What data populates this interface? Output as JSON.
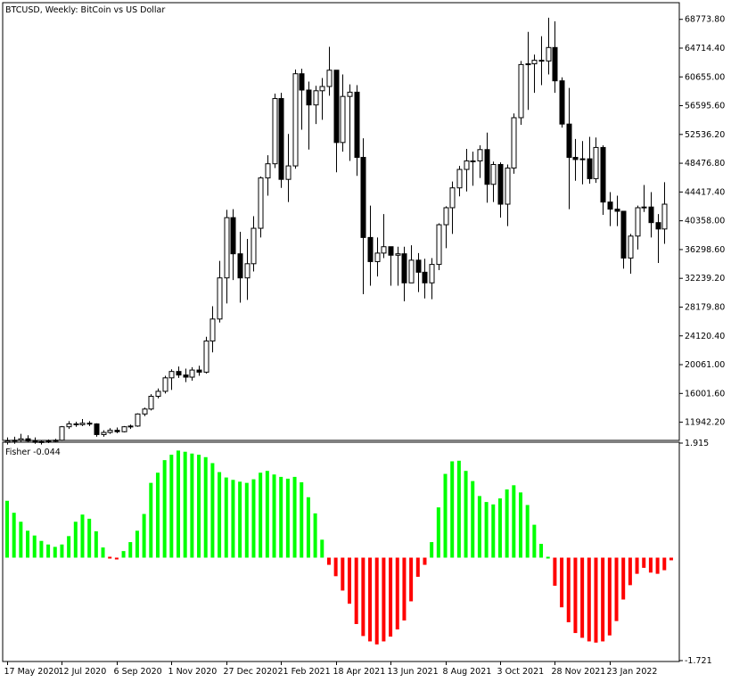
{
  "window": {
    "main_title": "BTCUSD, Weekly:  BitCoin vs US Dollar",
    "indicator_title": "Fisher -0.044"
  },
  "colors": {
    "background": "#ffffff",
    "frame": "#000000",
    "bull_candle": "#ffffff",
    "bear_candle": "#000000",
    "fisher_positive": "#00ff00",
    "fisher_negative": "#ff0000"
  },
  "chart_data": [
    {
      "type": "candlestick",
      "title": "BTCUSD, Weekly:  BitCoin vs US Dollar",
      "ylim": [
        9500,
        71000
      ],
      "y_ticks": [
        11942.2,
        16001.6,
        20061.0,
        24120.4,
        28179.8,
        32239.2,
        36298.6,
        40358.0,
        44417.4,
        48476.8,
        52536.2,
        56595.6,
        60655.0,
        64714.4,
        68773.8
      ],
      "x_tick_labels": [
        "17 May 2020",
        "12 Jul 2020",
        "6 Sep 2020",
        "1 Nov 2020",
        "27 Dec 2020",
        "21 Feb 2021",
        "18 Apr 2021",
        "13 Jun 2021",
        "8 Aug 2021",
        "3 Oct 2021",
        "28 Nov 2021",
        "23 Jan 2022"
      ],
      "x_tick_index": [
        0,
        8,
        16,
        24,
        32,
        40,
        48,
        56,
        64,
        72,
        80,
        88
      ],
      "candles": [
        {
          "o": 9100,
          "h": 9800,
          "l": 8800,
          "c": 9300
        },
        {
          "o": 9300,
          "h": 9900,
          "l": 8900,
          "c": 9400
        },
        {
          "o": 9400,
          "h": 10300,
          "l": 9200,
          "c": 9600
        },
        {
          "o": 9600,
          "h": 10100,
          "l": 9100,
          "c": 9300
        },
        {
          "o": 9300,
          "h": 9800,
          "l": 8900,
          "c": 9100
        },
        {
          "o": 9100,
          "h": 9400,
          "l": 8800,
          "c": 9200
        },
        {
          "o": 9200,
          "h": 9500,
          "l": 9000,
          "c": 9300
        },
        {
          "o": 9300,
          "h": 9600,
          "l": 9100,
          "c": 9400
        },
        {
          "o": 9400,
          "h": 11400,
          "l": 9300,
          "c": 11300
        },
        {
          "o": 11300,
          "h": 12100,
          "l": 11000,
          "c": 11700
        },
        {
          "o": 11700,
          "h": 12000,
          "l": 11300,
          "c": 11600
        },
        {
          "o": 11600,
          "h": 12400,
          "l": 11400,
          "c": 11800
        },
        {
          "o": 11800,
          "h": 12100,
          "l": 11400,
          "c": 11700
        },
        {
          "o": 11700,
          "h": 11800,
          "l": 9900,
          "c": 10200
        },
        {
          "o": 10200,
          "h": 10800,
          "l": 9900,
          "c": 10500
        },
        {
          "o": 10500,
          "h": 11100,
          "l": 10300,
          "c": 10800
        },
        {
          "o": 10800,
          "h": 11200,
          "l": 10400,
          "c": 10600
        },
        {
          "o": 10600,
          "h": 11400,
          "l": 10500,
          "c": 11300
        },
        {
          "o": 11300,
          "h": 11600,
          "l": 11000,
          "c": 11400
        },
        {
          "o": 11400,
          "h": 13200,
          "l": 11300,
          "c": 13100
        },
        {
          "o": 13100,
          "h": 14000,
          "l": 12800,
          "c": 13800
        },
        {
          "o": 13800,
          "h": 15900,
          "l": 13600,
          "c": 15600
        },
        {
          "o": 15600,
          "h": 16700,
          "l": 15300,
          "c": 16300
        },
        {
          "o": 16300,
          "h": 18500,
          "l": 16000,
          "c": 18200
        },
        {
          "o": 18200,
          "h": 19400,
          "l": 16500,
          "c": 19100
        },
        {
          "o": 19100,
          "h": 19800,
          "l": 18200,
          "c": 18600
        },
        {
          "o": 18600,
          "h": 19500,
          "l": 17600,
          "c": 18300
        },
        {
          "o": 18300,
          "h": 19700,
          "l": 17800,
          "c": 19300
        },
        {
          "o": 19300,
          "h": 19900,
          "l": 18500,
          "c": 19000
        },
        {
          "o": 19000,
          "h": 24000,
          "l": 18800,
          "c": 23400
        },
        {
          "o": 23400,
          "h": 28300,
          "l": 21800,
          "c": 26500
        },
        {
          "o": 26500,
          "h": 34700,
          "l": 26000,
          "c": 32300
        },
        {
          "o": 32300,
          "h": 41900,
          "l": 28700,
          "c": 40800
        },
        {
          "o": 40800,
          "h": 42000,
          "l": 32000,
          "c": 35700
        },
        {
          "o": 35700,
          "h": 38800,
          "l": 28800,
          "c": 32300
        },
        {
          "o": 32300,
          "h": 37800,
          "l": 29200,
          "c": 34300
        },
        {
          "o": 34300,
          "h": 41000,
          "l": 33200,
          "c": 39300
        },
        {
          "o": 39300,
          "h": 46600,
          "l": 38000,
          "c": 46400
        },
        {
          "o": 46400,
          "h": 49600,
          "l": 43900,
          "c": 48400
        },
        {
          "o": 48400,
          "h": 58300,
          "l": 47800,
          "c": 57600
        },
        {
          "o": 57600,
          "h": 58400,
          "l": 45000,
          "c": 46200
        },
        {
          "o": 46200,
          "h": 52600,
          "l": 43000,
          "c": 48100
        },
        {
          "o": 48100,
          "h": 61700,
          "l": 47700,
          "c": 61100
        },
        {
          "o": 61100,
          "h": 61800,
          "l": 53200,
          "c": 58800
        },
        {
          "o": 58800,
          "h": 60000,
          "l": 50400,
          "c": 56700
        },
        {
          "o": 56700,
          "h": 59400,
          "l": 54000,
          "c": 58700
        },
        {
          "o": 58700,
          "h": 60500,
          "l": 54600,
          "c": 59300
        },
        {
          "o": 59300,
          "h": 64900,
          "l": 58000,
          "c": 61600
        },
        {
          "o": 61600,
          "h": 61600,
          "l": 47200,
          "c": 51400
        },
        {
          "o": 51400,
          "h": 61000,
          "l": 50100,
          "c": 57900
        },
        {
          "o": 57900,
          "h": 59600,
          "l": 48800,
          "c": 58500
        },
        {
          "o": 58500,
          "h": 59500,
          "l": 46700,
          "c": 49300
        },
        {
          "o": 49300,
          "h": 52000,
          "l": 30000,
          "c": 38000
        },
        {
          "o": 38000,
          "h": 42500,
          "l": 31200,
          "c": 34600
        },
        {
          "o": 34600,
          "h": 38000,
          "l": 32500,
          "c": 35800
        },
        {
          "o": 35800,
          "h": 41300,
          "l": 35100,
          "c": 36700
        },
        {
          "o": 36700,
          "h": 36700,
          "l": 31200,
          "c": 35500
        },
        {
          "o": 35500,
          "h": 36700,
          "l": 31200,
          "c": 35700
        },
        {
          "o": 35700,
          "h": 36700,
          "l": 29000,
          "c": 31600
        },
        {
          "o": 31600,
          "h": 36900,
          "l": 31600,
          "c": 34800
        },
        {
          "o": 34800,
          "h": 35800,
          "l": 30300,
          "c": 33100
        },
        {
          "o": 33100,
          "h": 35000,
          "l": 29400,
          "c": 31600
        },
        {
          "o": 31600,
          "h": 35100,
          "l": 29300,
          "c": 34200
        },
        {
          "o": 34200,
          "h": 40000,
          "l": 33400,
          "c": 39800
        },
        {
          "o": 39800,
          "h": 42400,
          "l": 36500,
          "c": 42200
        },
        {
          "o": 42200,
          "h": 45900,
          "l": 38500,
          "c": 45000
        },
        {
          "o": 45000,
          "h": 48100,
          "l": 43800,
          "c": 47600
        },
        {
          "o": 47600,
          "h": 50500,
          "l": 44500,
          "c": 48800
        },
        {
          "o": 48800,
          "h": 50100,
          "l": 45300,
          "c": 48800
        },
        {
          "o": 48800,
          "h": 51000,
          "l": 46400,
          "c": 50400
        },
        {
          "o": 50400,
          "h": 52800,
          "l": 42900,
          "c": 45500
        },
        {
          "o": 45500,
          "h": 48700,
          "l": 43000,
          "c": 48300
        },
        {
          "o": 48300,
          "h": 48600,
          "l": 40800,
          "c": 42700
        },
        {
          "o": 42700,
          "h": 48300,
          "l": 39600,
          "c": 47800
        },
        {
          "o": 47800,
          "h": 55500,
          "l": 47000,
          "c": 54900
        },
        {
          "o": 54900,
          "h": 62900,
          "l": 53900,
          "c": 62400
        },
        {
          "o": 62400,
          "h": 67000,
          "l": 56000,
          "c": 62500
        },
        {
          "o": 62500,
          "h": 63800,
          "l": 58400,
          "c": 63000
        },
        {
          "o": 63000,
          "h": 66400,
          "l": 59500,
          "c": 62900
        },
        {
          "o": 62900,
          "h": 69000,
          "l": 61000,
          "c": 64800
        },
        {
          "o": 64800,
          "h": 68500,
          "l": 58400,
          "c": 60100
        },
        {
          "o": 60100,
          "h": 60600,
          "l": 53500,
          "c": 54000
        },
        {
          "o": 54000,
          "h": 59100,
          "l": 42000,
          "c": 49300
        },
        {
          "o": 49300,
          "h": 51900,
          "l": 46000,
          "c": 49000
        },
        {
          "o": 49000,
          "h": 51600,
          "l": 45500,
          "c": 49100
        },
        {
          "o": 49100,
          "h": 52200,
          "l": 45600,
          "c": 46300
        },
        {
          "o": 46300,
          "h": 52100,
          "l": 45700,
          "c": 50700
        },
        {
          "o": 50700,
          "h": 51000,
          "l": 41200,
          "c": 43000
        },
        {
          "o": 43000,
          "h": 44400,
          "l": 39600,
          "c": 42000
        },
        {
          "o": 42000,
          "h": 43900,
          "l": 39600,
          "c": 41700
        },
        {
          "o": 41700,
          "h": 41700,
          "l": 33600,
          "c": 35100
        },
        {
          "o": 35100,
          "h": 38500,
          "l": 32900,
          "c": 38200
        },
        {
          "o": 38200,
          "h": 42500,
          "l": 36300,
          "c": 42200
        },
        {
          "o": 42200,
          "h": 45400,
          "l": 41600,
          "c": 42300
        },
        {
          "o": 42300,
          "h": 44400,
          "l": 38000,
          "c": 40100
        },
        {
          "o": 40100,
          "h": 41300,
          "l": 34400,
          "c": 39200
        },
        {
          "o": 39200,
          "h": 45800,
          "l": 37100,
          "c": 42700
        }
      ]
    },
    {
      "type": "bar",
      "title": "Fisher -0.044",
      "ylim": [
        -1.721,
        1.915
      ],
      "y_ticks": [
        1.915,
        -1.721
      ],
      "positive_color": "#00ff00",
      "negative_color": "#ff0000",
      "values": [
        0.95,
        0.75,
        0.6,
        0.45,
        0.37,
        0.28,
        0.22,
        0.18,
        0.22,
        0.36,
        0.6,
        0.72,
        0.65,
        0.44,
        0.17,
        -0.02,
        -0.03,
        0.11,
        0.26,
        0.45,
        0.73,
        1.25,
        1.42,
        1.63,
        1.72,
        1.79,
        1.77,
        1.74,
        1.72,
        1.68,
        1.58,
        1.43,
        1.34,
        1.3,
        1.27,
        1.25,
        1.31,
        1.42,
        1.45,
        1.39,
        1.35,
        1.32,
        1.35,
        1.26,
        1.01,
        0.74,
        0.3,
        -0.12,
        -0.31,
        -0.55,
        -0.77,
        -1.11,
        -1.31,
        -1.4,
        -1.45,
        -1.4,
        -1.32,
        -1.2,
        -1.05,
        -0.73,
        -0.32,
        -0.12,
        0.26,
        0.84,
        1.4,
        1.61,
        1.62,
        1.45,
        1.28,
        1.03,
        0.93,
        0.89,
        0.99,
        1.14,
        1.21,
        1.09,
        0.88,
        0.55,
        0.23,
        0.01,
        -0.47,
        -0.83,
        -1.08,
        -1.26,
        -1.34,
        -1.4,
        -1.42,
        -1.4,
        -1.3,
        -1.06,
        -0.7,
        -0.46,
        -0.27,
        -0.17,
        -0.25,
        -0.27,
        -0.21,
        -0.044
      ]
    }
  ]
}
